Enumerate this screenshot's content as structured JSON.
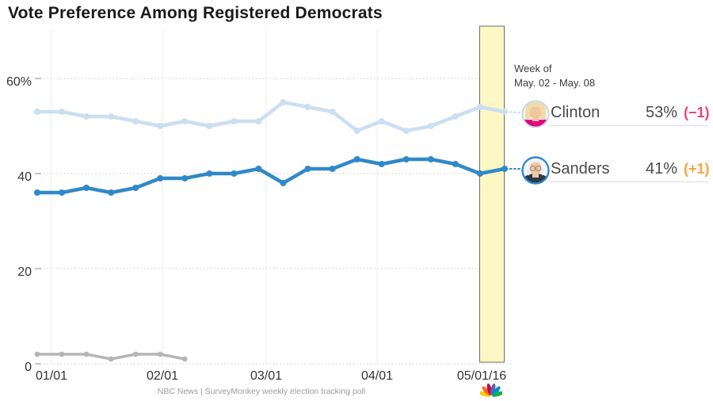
{
  "title": "Vote Preference Among Registered Democrats",
  "source": "NBC News | SurveyMonkey weekly election tracking poll",
  "annotation": {
    "line1": "Week of",
    "line2": "May. 02 - May. 08"
  },
  "legend": {
    "clinton": {
      "name": "Clinton",
      "value": "53%",
      "change": "(−1)",
      "change_color": "#f0417f",
      "ring_color": "#c3d6ea"
    },
    "sanders": {
      "name": "Sanders",
      "value": "41%",
      "change": "(+1)",
      "change_color": "#f9a53d",
      "ring_color": "#3189c9"
    }
  },
  "colors": {
    "clinton_line": "#cbdef2",
    "sanders_line": "#3089c8",
    "gray_line": "#b5b5b5",
    "band_fill": "#fdf7c6",
    "band_border": "#6e6e5e",
    "grid_dot": "#d8d8d8",
    "grid_vertical": "#ececec",
    "tick": "#aaaaaa"
  },
  "icons": {
    "nbc_peacock_colors": [
      "#fccb00",
      "#f37021",
      "#cc004c",
      "#6460aa",
      "#0089d0",
      "#0db14b"
    ]
  },
  "chart_data": {
    "type": "line",
    "title": "Vote Preference Among Registered Democrats",
    "x_tick_labels": [
      "01/01",
      "02/01",
      "03/01",
      "04/01",
      "05/01/16"
    ],
    "y_tick_labels": [
      "60%",
      "40",
      "20",
      "0"
    ],
    "y_tick_values": [
      60,
      40,
      20,
      0
    ],
    "ylim": [
      0,
      63
    ],
    "points_per_series": "weekly tracking poll points",
    "series": [
      {
        "name": "Clinton",
        "color": "#cbdef2",
        "values": [
          53,
          53,
          52,
          52,
          51,
          50,
          51,
          50,
          51,
          51,
          55,
          54,
          53,
          49,
          51,
          49,
          50,
          52,
          54,
          53
        ],
        "final_label": "53% (−1)"
      },
      {
        "name": "Sanders",
        "color": "#3089c8",
        "values": [
          36,
          36,
          37,
          36,
          37,
          39,
          39,
          40,
          40,
          41,
          38,
          41,
          41,
          43,
          42,
          43,
          43,
          42,
          40,
          41
        ],
        "final_label": "41% (+1)"
      },
      {
        "name": "unlabeled-gray-candidate",
        "color": "#b5b5b5",
        "values": [
          2,
          2,
          2,
          1,
          2,
          2,
          1
        ]
      }
    ],
    "highlight_band": {
      "label": "Week of May. 02 - May. 08",
      "position": "last week before 05/01/16 tick area"
    },
    "grid": "dotted horizontal at 0/20/40/60, light solid vertical at month ticks",
    "legend_position": "right"
  }
}
